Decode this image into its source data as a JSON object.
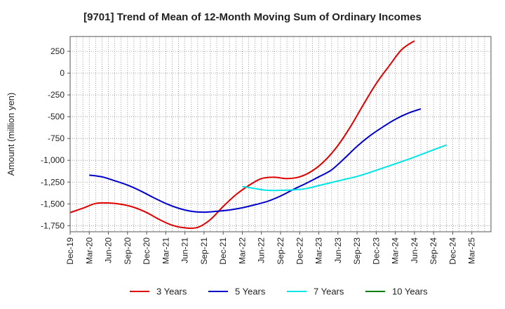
{
  "chart_data": {
    "type": "line",
    "title": "[9701]  Trend of Mean of 12-Month Moving Sum of Ordinary Incomes",
    "xlabel": "",
    "ylabel": "Amount (million yen)",
    "ylim": [
      -1820,
      420
    ],
    "yticks": [
      250,
      0,
      -250,
      -500,
      -750,
      -1000,
      -1250,
      -1500,
      -1750
    ],
    "ytick_labels": [
      "250",
      "0",
      "-250",
      "-500",
      "-750",
      "-1,000",
      "-1,250",
      "-1,500",
      "-1,750"
    ],
    "xlim": [
      0,
      66
    ],
    "xtick_labels": [
      "Dec-19",
      "Mar-20",
      "Jun-20",
      "Sep-20",
      "Dec-20",
      "Mar-21",
      "Jun-21",
      "Sep-21",
      "Dec-21",
      "Mar-22",
      "Jun-22",
      "Sep-22",
      "Dec-22",
      "Mar-23",
      "Jun-23",
      "Sep-23",
      "Dec-23",
      "Mar-24",
      "Jun-24",
      "Sep-24",
      "Dec-24",
      "Mar-25"
    ],
    "x_unit": "months since Dec-19",
    "grid": true,
    "legend_position": "bottom",
    "series": [
      {
        "name": "3 Years",
        "color": "#e00000",
        "x": [
          0,
          2,
          4,
          6,
          8,
          10,
          12,
          14,
          16,
          18,
          20,
          22,
          24,
          26,
          28,
          30,
          32,
          34,
          36,
          38,
          40,
          42,
          44,
          46,
          48,
          50,
          52,
          54,
          56,
          58,
          60
        ],
        "y": [
          -1600,
          -1550,
          -1495,
          -1490,
          -1505,
          -1540,
          -1600,
          -1680,
          -1745,
          -1775,
          -1770,
          -1680,
          -1530,
          -1395,
          -1290,
          -1210,
          -1195,
          -1210,
          -1190,
          -1120,
          -1000,
          -830,
          -610,
          -360,
          -120,
          80,
          270,
          370,
          null,
          null,
          null
        ]
      },
      {
        "name": "5 Years",
        "color": "#0000cc",
        "x": [
          3,
          5,
          7,
          9,
          11,
          13,
          15,
          17,
          19,
          21,
          23,
          25,
          27,
          29,
          31,
          33,
          35,
          37,
          39,
          41,
          43,
          45,
          47,
          49,
          51,
          53,
          55,
          57,
          59,
          61,
          63
        ],
        "y": [
          -1170,
          -1190,
          -1235,
          -1285,
          -1350,
          -1425,
          -1495,
          -1550,
          -1585,
          -1595,
          -1585,
          -1570,
          -1545,
          -1510,
          -1470,
          -1410,
          -1335,
          -1265,
          -1190,
          -1110,
          -980,
          -840,
          -720,
          -620,
          -530,
          -460,
          -410,
          null,
          null,
          null,
          null
        ]
      },
      {
        "name": "7 Years",
        "color": "#00e5e5",
        "x": [
          27,
          29,
          31,
          33,
          35,
          37,
          39,
          41,
          43,
          45,
          47,
          49,
          51,
          53,
          55,
          57,
          59,
          61,
          63,
          65,
          66
        ],
        "y": [
          -1300,
          -1325,
          -1345,
          -1345,
          -1340,
          -1325,
          -1290,
          -1255,
          -1220,
          -1185,
          -1140,
          -1090,
          -1040,
          -990,
          -935,
          -880,
          -825,
          null,
          null,
          null,
          null
        ]
      },
      {
        "name": "10 Years",
        "color": "#008000",
        "x": [],
        "y": []
      }
    ]
  }
}
